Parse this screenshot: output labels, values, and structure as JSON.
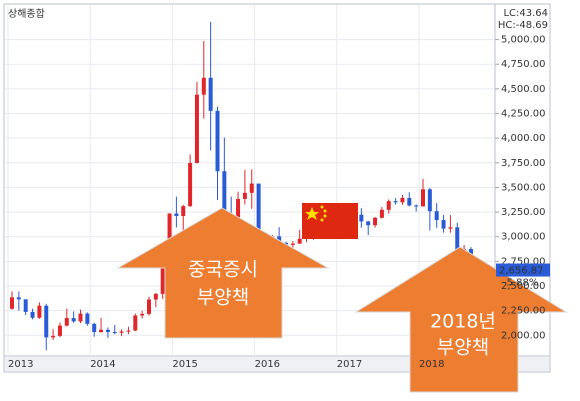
{
  "chart_data": {
    "type": "candlestick",
    "title": "상해종합",
    "indicators": [
      {
        "text": "LC:43.64",
        "color": "#e0262a"
      },
      {
        "text": "HC:-48.69",
        "color": "#2a5bd7"
      }
    ],
    "last_price": {
      "value": 2656.87,
      "label": "2,656.87",
      "change": "-5.88%"
    },
    "up_color": "#e0262a",
    "down_color": "#2a5bd7",
    "categories": [
      "2013",
      null,
      null,
      null,
      null,
      null,
      null,
      null,
      null,
      null,
      null,
      null,
      "2014",
      null,
      null,
      null,
      null,
      null,
      null,
      null,
      null,
      null,
      null,
      null,
      "2015",
      null,
      null,
      null,
      null,
      null,
      null,
      null,
      null,
      null,
      null,
      null,
      "2016",
      null,
      null,
      null,
      null,
      null,
      null,
      null,
      null,
      null,
      null,
      null,
      "2017",
      null,
      null,
      null,
      null,
      null,
      null,
      null,
      null,
      null,
      null,
      null,
      "2018",
      null,
      null,
      null,
      null,
      null,
      null,
      null
    ],
    "candles": [
      [
        2269,
        2445,
        2262,
        2385
      ],
      [
        2385,
        2444,
        2250,
        2365
      ],
      [
        2365,
        2332,
        2206,
        2237
      ],
      [
        2237,
        2270,
        2161,
        2178
      ],
      [
        2178,
        2334,
        2166,
        2300
      ],
      [
        2300,
        2320,
        1849,
        1979
      ],
      [
        1979,
        2062,
        1952,
        1994
      ],
      [
        1994,
        2130,
        1981,
        2098
      ],
      [
        2098,
        2270,
        2090,
        2175
      ],
      [
        2175,
        2242,
        2126,
        2141
      ],
      [
        2141,
        2260,
        2123,
        2220
      ],
      [
        2220,
        2233,
        2097,
        2116
      ],
      [
        2116,
        2128,
        1985,
        2033
      ],
      [
        2033,
        2177,
        2026,
        2056
      ],
      [
        2056,
        2080,
        1974,
        2033
      ],
      [
        2033,
        2105,
        2010,
        2026
      ],
      [
        2026,
        2062,
        1991,
        2039
      ],
      [
        2039,
        2087,
        2011,
        2048
      ],
      [
        2048,
        2220,
        2042,
        2201
      ],
      [
        2201,
        2248,
        2171,
        2217
      ],
      [
        2217,
        2391,
        2200,
        2363
      ],
      [
        2363,
        2430,
        2285,
        2420
      ],
      [
        2420,
        2695,
        2370,
        2683
      ],
      [
        2683,
        3239,
        2664,
        3235
      ],
      [
        3235,
        3406,
        3095,
        3210
      ],
      [
        3210,
        3325,
        3050,
        3310
      ],
      [
        3310,
        3835,
        3302,
        3748
      ],
      [
        3748,
        4572,
        3743,
        4441
      ],
      [
        4441,
        4986,
        4198,
        4612
      ],
      [
        4612,
        5178,
        3875,
        4277
      ],
      [
        4277,
        4318,
        3373,
        3664
      ],
      [
        3664,
        4006,
        2850,
        3206
      ],
      [
        3206,
        3407,
        2983,
        3053
      ],
      [
        3053,
        3457,
        3053,
        3383
      ],
      [
        3383,
        3678,
        3327,
        3445
      ],
      [
        3445,
        3684,
        3284,
        3539
      ],
      [
        3539,
        3539,
        2638,
        2738
      ],
      [
        2738,
        2934,
        2638,
        2688
      ],
      [
        2688,
        3019,
        2686,
        3004
      ],
      [
        3004,
        3097,
        2919,
        2938
      ],
      [
        2938,
        2950,
        2780,
        2917
      ],
      [
        2917,
        2955,
        2807,
        2930
      ],
      [
        2930,
        3070,
        2927,
        2979
      ],
      [
        2979,
        3140,
        2945,
        3085
      ],
      [
        3085,
        3092,
        2969,
        3005
      ],
      [
        3005,
        3122,
        2995,
        3100
      ],
      [
        3100,
        3301,
        3077,
        3250
      ],
      [
        3250,
        3264,
        3056,
        3104
      ],
      [
        3104,
        3174,
        3044,
        3159
      ],
      [
        3159,
        3264,
        3122,
        3242
      ],
      [
        3242,
        3295,
        3174,
        3223
      ],
      [
        3223,
        3290,
        3091,
        3155
      ],
      [
        3155,
        3161,
        3016,
        3117
      ],
      [
        3117,
        3200,
        3092,
        3192
      ],
      [
        3192,
        3302,
        3185,
        3273
      ],
      [
        3273,
        3378,
        3233,
        3361
      ],
      [
        3361,
        3392,
        3325,
        3349
      ],
      [
        3349,
        3424,
        3324,
        3393
      ],
      [
        3393,
        3451,
        3307,
        3317
      ],
      [
        3317,
        3328,
        3255,
        3307
      ],
      [
        3307,
        3587,
        3307,
        3481
      ],
      [
        3481,
        3495,
        3062,
        3259
      ],
      [
        3259,
        3341,
        3091,
        3169
      ],
      [
        3169,
        3220,
        3041,
        3082
      ],
      [
        3082,
        3220,
        3041,
        3095
      ],
      [
        3095,
        3142,
        2782,
        2847
      ],
      [
        2847,
        2916,
        2691,
        2876
      ],
      [
        2876,
        2895,
        2653,
        2656.87
      ]
    ],
    "ylim": [
      1800,
      5300
    ],
    "yticks": [
      {
        "value": 2000,
        "label": "2,000.00"
      },
      {
        "value": 2250,
        "label": "2,250.00"
      },
      {
        "value": 2500,
        "label": "2,500.00"
      },
      {
        "value": 2750,
        "label": "2,750.00"
      },
      {
        "value": 3000,
        "label": "3,000.00"
      },
      {
        "value": 3250,
        "label": "3,250.00"
      },
      {
        "value": 3500,
        "label": "3,500.00"
      },
      {
        "value": 3750,
        "label": "3,750.00"
      },
      {
        "value": 4000,
        "label": "4,000.00"
      },
      {
        "value": 4250,
        "label": "4,250.00"
      },
      {
        "value": 4500,
        "label": "4,500.00"
      },
      {
        "value": 4750,
        "label": "4,750.00"
      },
      {
        "value": 5000,
        "label": "5,000.00"
      }
    ],
    "grid": true,
    "annotations": [
      {
        "lines": [
          "중국증시",
          "부양책"
        ]
      },
      {
        "lines": [
          "2018년",
          "부양책"
        ]
      }
    ]
  }
}
